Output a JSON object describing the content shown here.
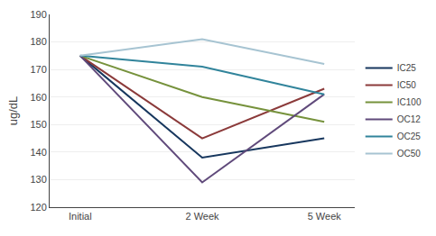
{
  "chart_data": {
    "type": "line",
    "categories": [
      "Initial",
      "2 Week",
      "5 Week"
    ],
    "series": [
      {
        "name": "IC25",
        "color": "#17375E",
        "values": [
          175,
          138,
          145
        ]
      },
      {
        "name": "IC50",
        "color": "#8B3A3A",
        "values": [
          175,
          145,
          163
        ]
      },
      {
        "name": "IC100",
        "color": "#76923C",
        "values": [
          175,
          160,
          151
        ]
      },
      {
        "name": "OC12",
        "color": "#604A7B",
        "values": [
          175,
          129,
          161
        ]
      },
      {
        "name": "OC25",
        "color": "#31849B",
        "values": [
          175,
          171,
          161
        ]
      },
      {
        "name": "OC50",
        "color": "#A7C4D2",
        "values": [
          175,
          181,
          172
        ]
      }
    ],
    "ylabel": "ug/dL",
    "ylim": [
      120,
      190
    ],
    "yticks": [
      120,
      130,
      140,
      150,
      160,
      170,
      180,
      190
    ],
    "grid": true,
    "legend": "right"
  }
}
